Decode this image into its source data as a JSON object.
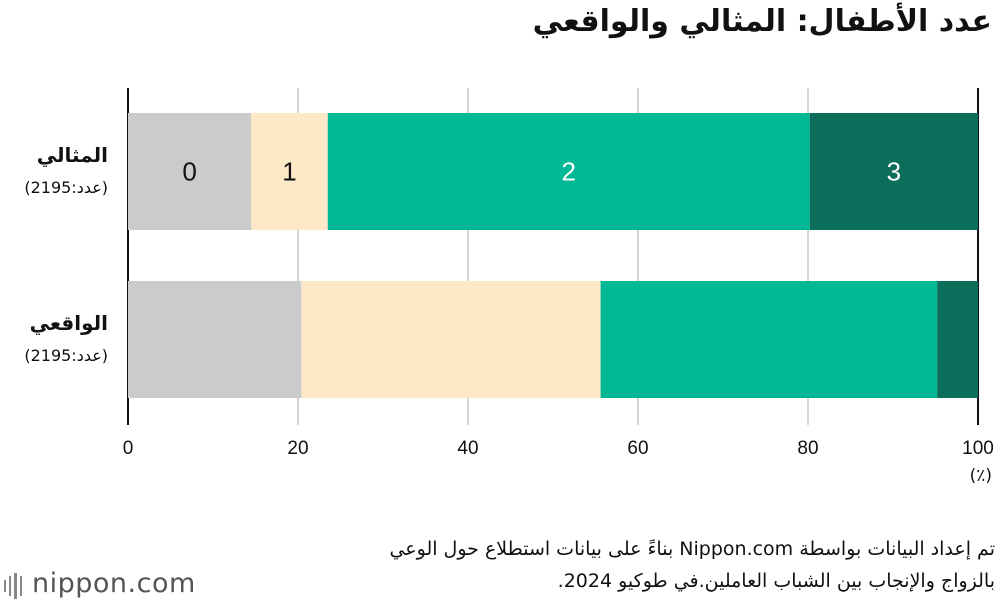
{
  "title": "عدد الأطفال: المثالي والواقعي",
  "chart_data": {
    "type": "stacked-bar-horizontal",
    "categories": [
      "المثالي",
      "الواقعي"
    ],
    "category_notes": [
      "(عدد:2195)",
      "(عدد:2195)"
    ],
    "series": [
      {
        "name": "0",
        "color": "#cbcbcb",
        "values": [
          14.5,
          20.4
        ]
      },
      {
        "name": "1",
        "color": "#fde8c8",
        "values": [
          9.0,
          35.2
        ]
      },
      {
        "name": "2",
        "color": "#00b894",
        "values": [
          56.7,
          39.6
        ]
      },
      {
        "name": "3",
        "color": "#0b6e5b",
        "values": [
          19.8,
          4.8
        ]
      }
    ],
    "xlim": [
      0,
      100
    ],
    "xticks": [
      0,
      20,
      40,
      60,
      80,
      100
    ],
    "x_unit": "(٪)",
    "grid": true
  },
  "source_note": [
    "تم إعداد البيانات بواسطة Nippon.com بناءً على بيانات استطلاع حول الوعي",
    "بالزواج والإنجاب بين الشباب العاملين.في طوكيو 2024."
  ],
  "logo": "nippon.com"
}
